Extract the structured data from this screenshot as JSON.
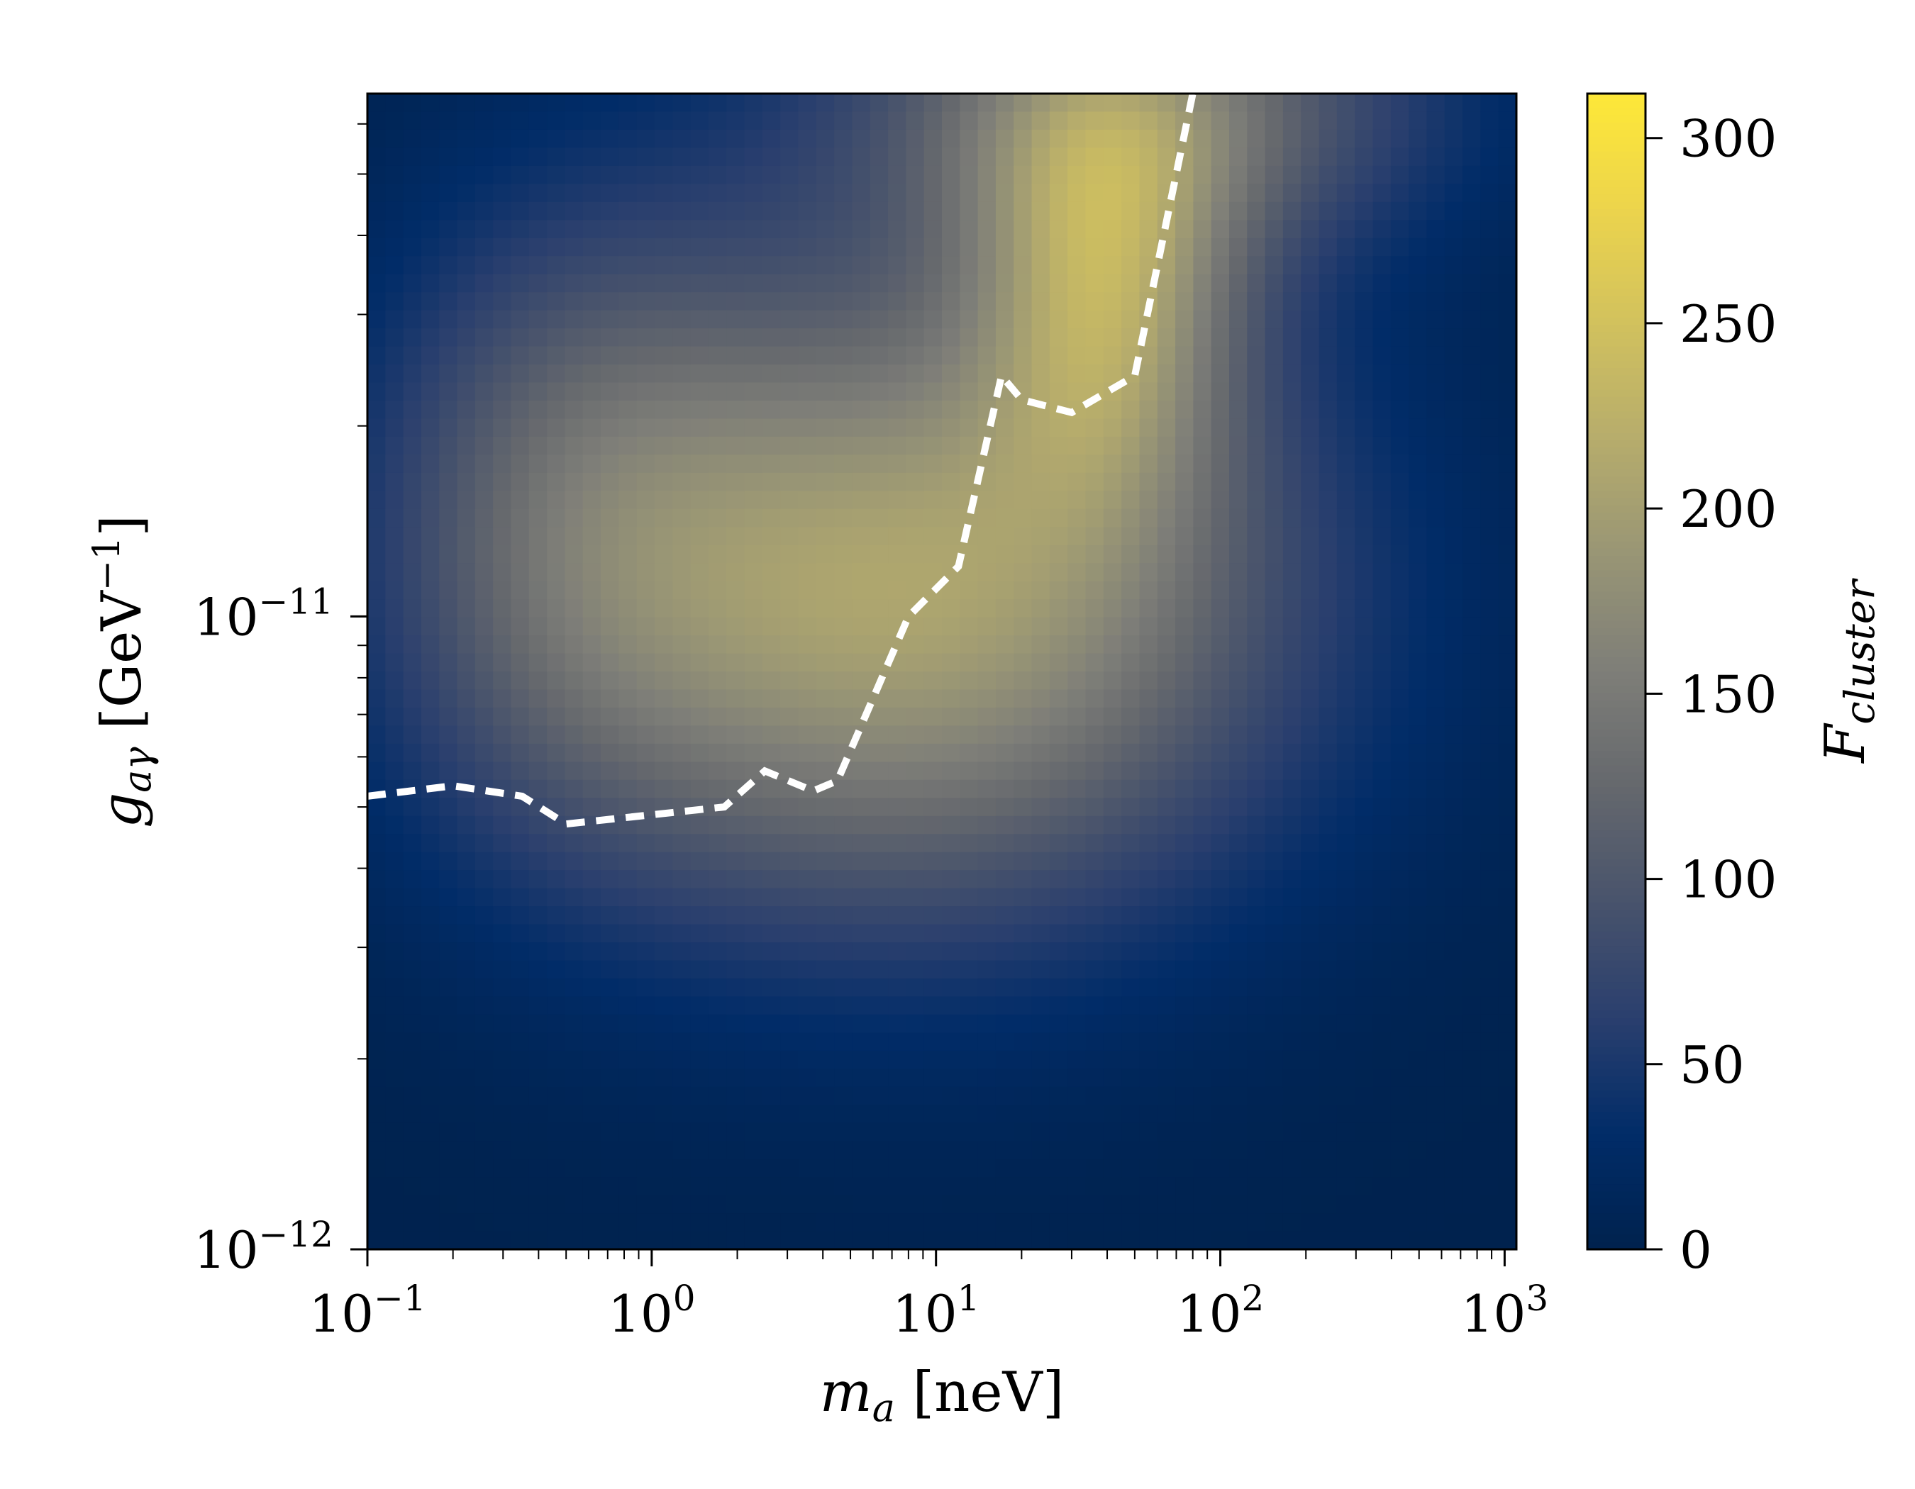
{
  "chart_data": {
    "type": "heatmap",
    "x_scale": "log",
    "y_scale": "log",
    "xlim": [
      0.1,
      1100
    ],
    "ylim": [
      1e-12,
      6.7e-11
    ],
    "xlabel": {
      "main": "m",
      "sub": "a",
      "unit": " [neV]"
    },
    "ylabel": {
      "main": "g",
      "sub": "aγ",
      "unit_pre": " [GeV",
      "unit_sup": "−1",
      "unit_post": "]"
    },
    "x_ticks": [
      {
        "value": 0.1,
        "base": "10",
        "exp": "−1"
      },
      {
        "value": 1,
        "base": "10",
        "exp": "0"
      },
      {
        "value": 10,
        "base": "10",
        "exp": "1"
      },
      {
        "value": 100,
        "base": "10",
        "exp": "2"
      },
      {
        "value": 1000,
        "base": "10",
        "exp": "3"
      }
    ],
    "y_ticks": [
      {
        "value": 1e-12,
        "base": "10",
        "exp": "−12"
      },
      {
        "value": 1e-11,
        "base": "10",
        "exp": "−11"
      }
    ],
    "colorbar": {
      "label": {
        "main": "F",
        "sub": "cluster"
      },
      "range": [
        0,
        312
      ],
      "ticks": [
        0,
        50,
        100,
        150,
        200,
        250,
        300
      ],
      "tick_labels": [
        "0",
        "50",
        "100",
        "150",
        "200",
        "250",
        "300"
      ],
      "colormap": "cividis"
    },
    "heatmap_components": [
      {
        "name": "peak",
        "x_center": 40,
        "y_center": 3.4e-11,
        "x_width_decades": 0.33,
        "y_width_decades": 0.24,
        "amplitude": 145
      },
      {
        "name": "central-plateau",
        "x_center": 8,
        "y_center": 1.1e-11,
        "x_width_decades": 0.95,
        "y_width_decades": 0.36,
        "amplitude": 205
      },
      {
        "name": "left-gray",
        "x_center": 0.5,
        "y_center": 1.5e-11,
        "x_width_decades": 0.5,
        "y_width_decades": 0.36,
        "amplitude": 70
      },
      {
        "name": "top-ridge",
        "x_center": 50,
        "y_center": 6.5e-11,
        "x_width_decades": 0.75,
        "y_width_decades": 0.17,
        "amplitude": 125
      }
    ],
    "contour": {
      "style": "dashed",
      "color": "#ffffff",
      "x": [
        0.1,
        0.2,
        0.35,
        0.5,
        1.8,
        2.5,
        3.7,
        4.5,
        8,
        12,
        17,
        20,
        30,
        50,
        80
      ],
      "y": [
        5.2e-12,
        5.4e-12,
        5.2e-12,
        4.7e-12,
        5e-12,
        5.7e-12,
        5.3e-12,
        5.5e-12,
        1e-11,
        1.2e-11,
        2.4e-11,
        2.2e-11,
        2.1e-11,
        2.4e-11,
        6.7e-11
      ]
    }
  }
}
